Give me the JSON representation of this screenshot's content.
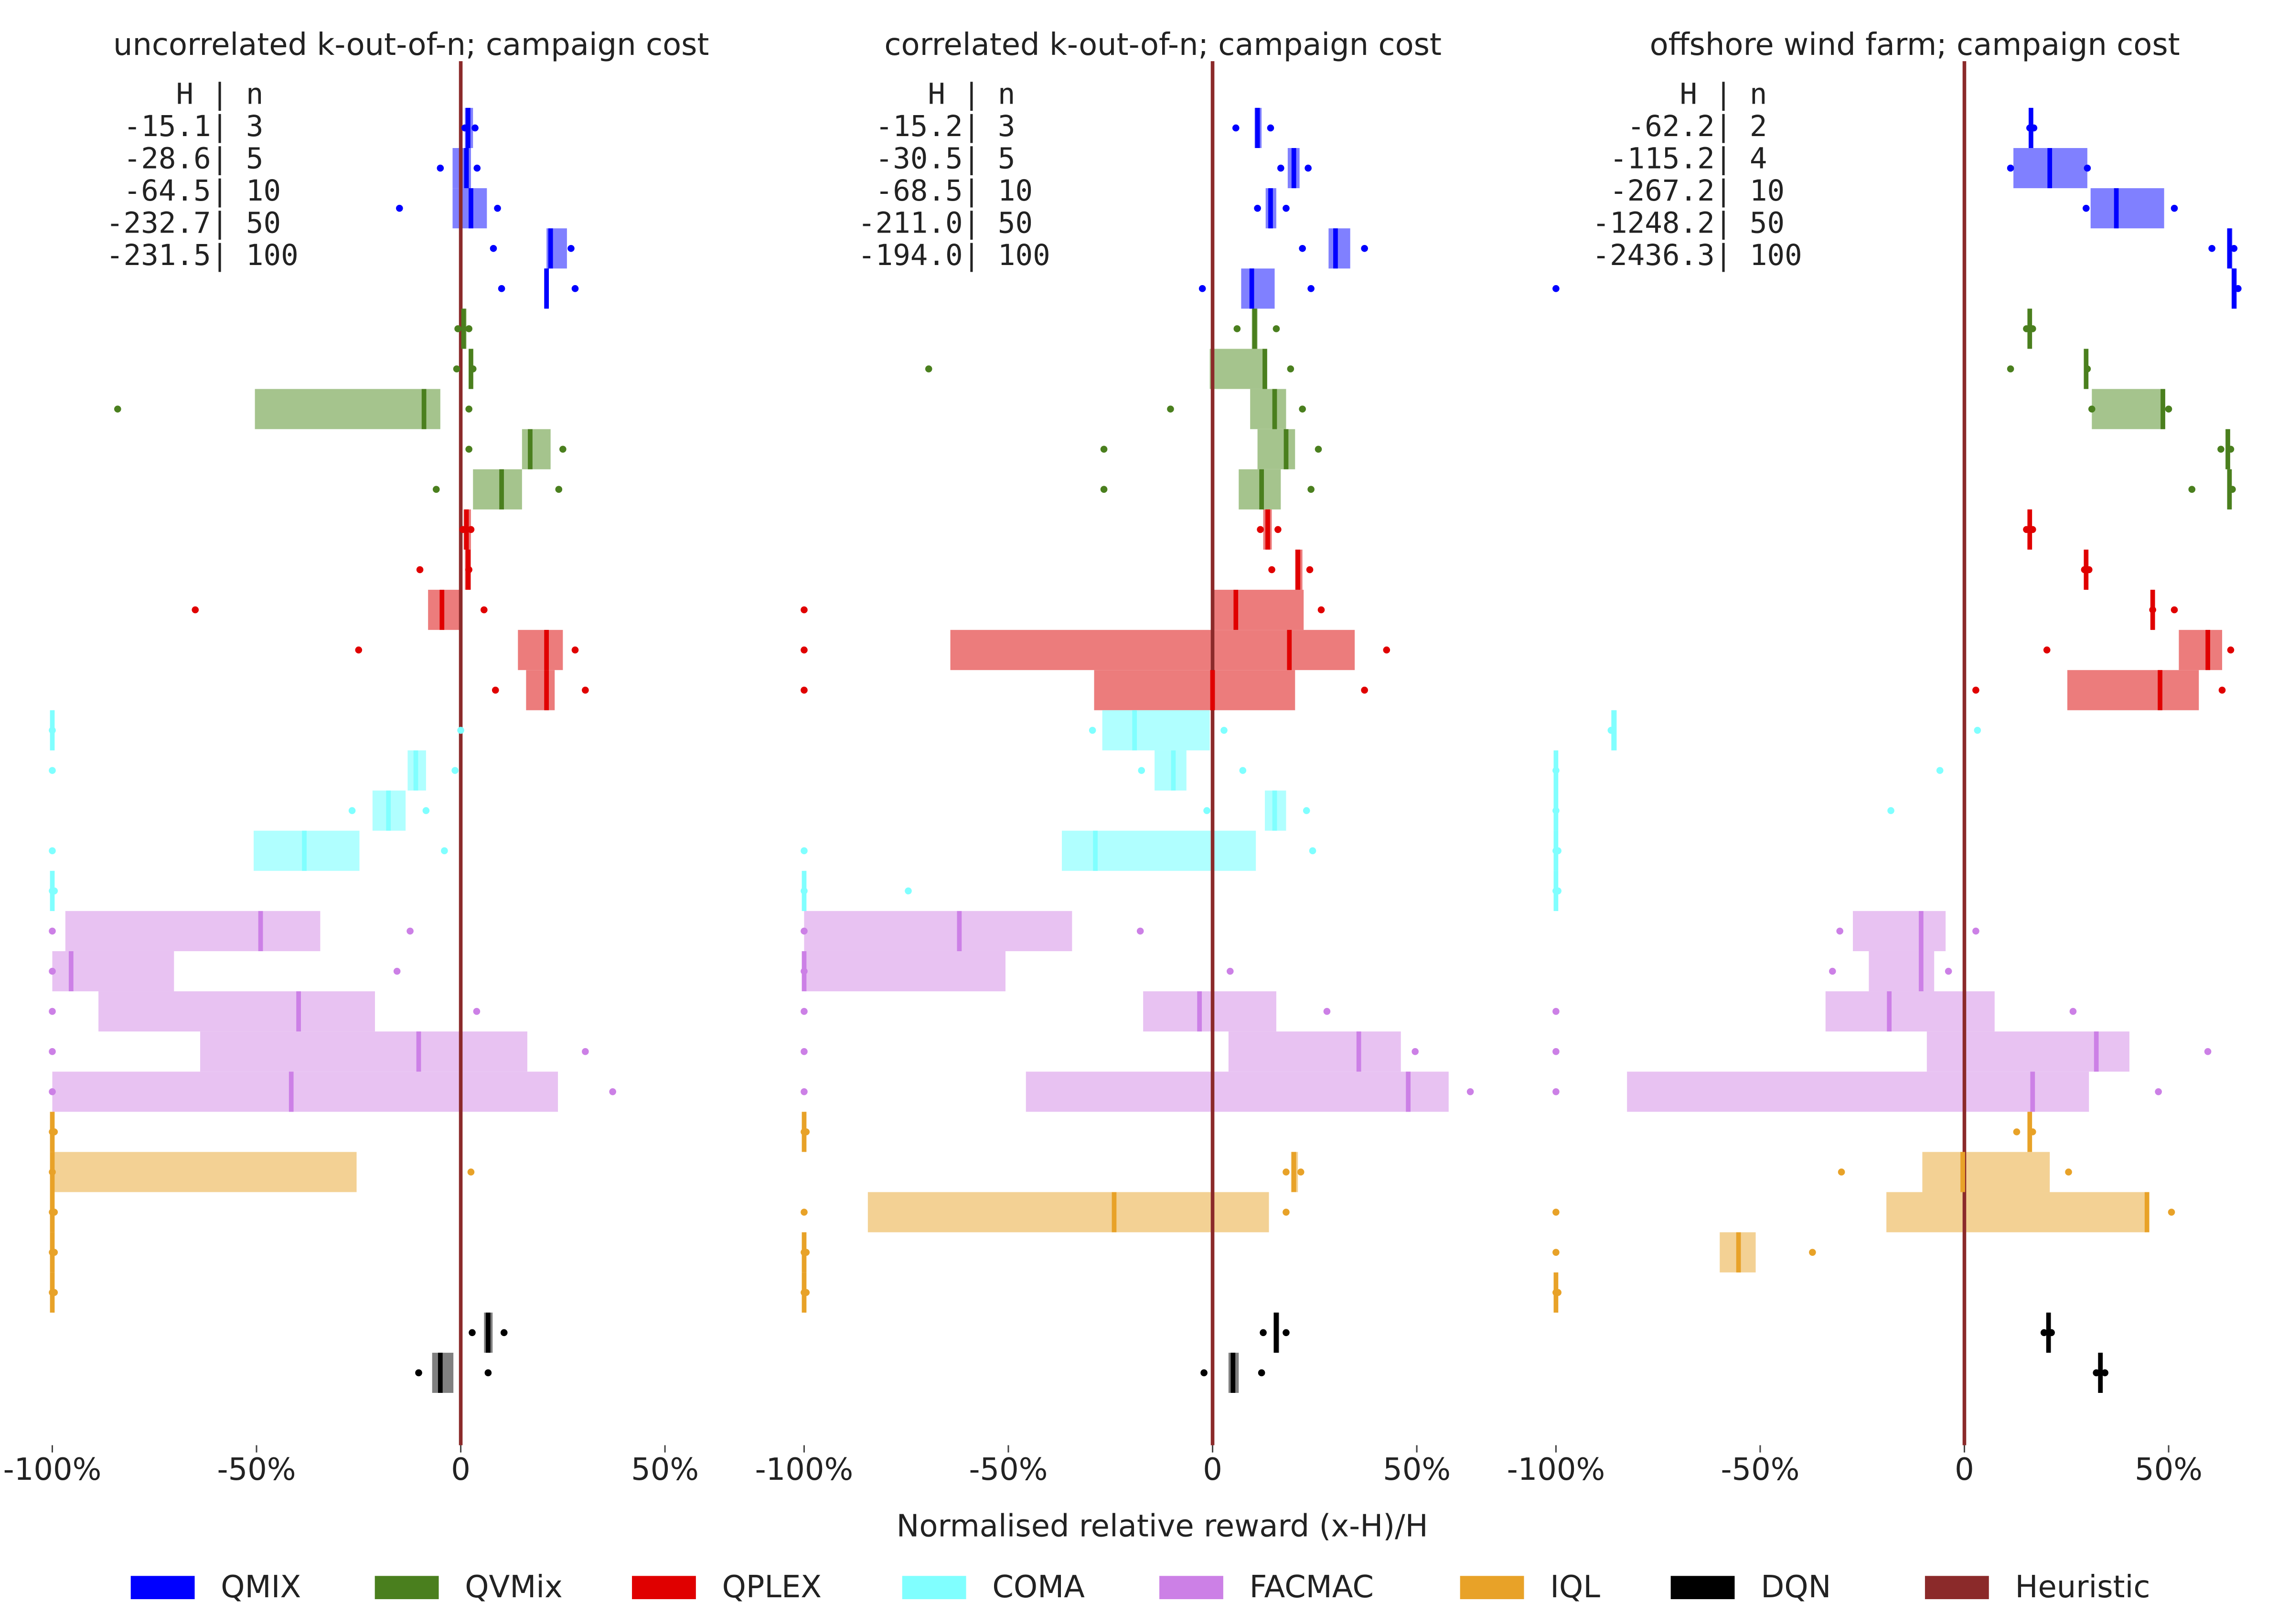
{
  "chart_data": {
    "type": "box",
    "xlabel": "Normalised relative reward (x-H)/H",
    "xlim": [
      -100,
      75
    ],
    "xticks": [
      {
        "value": -100,
        "label": "-100%"
      },
      {
        "value": -50,
        "label": "-50%"
      },
      0,
      {
        "value": 50,
        "label": "50%"
      }
    ],
    "panels": [
      {
        "title": "uncorrelated k-out-of-n; campaign cost",
        "table": [
          "    H | n",
          " -15.1| 3",
          " -28.6| 5",
          " -64.5| 10",
          "-232.7| 50",
          "-231.5| 100"
        ]
      },
      {
        "title": "correlated k-out-of-n; campaign cost",
        "table": [
          "    H | n",
          " -15.2| 3",
          " -30.5| 5",
          " -68.5| 10",
          "-211.0| 50",
          "-194.0| 100"
        ]
      },
      {
        "title": "offshore wind farm; campaign cost",
        "table": [
          "     H | n",
          "  -62.2| 2",
          " -115.2| 4",
          " -267.2| 10",
          "-1248.2| 50",
          "-2436.3| 100"
        ]
      }
    ],
    "series": [
      {
        "name": "QMIX",
        "color": "#0000ff",
        "box_color": "#8080ff",
        "panels": [
          {
            "median": [
              1.8,
              1.4,
              2.5,
              22,
              21
            ],
            "q1": [
              1,
              -2,
              -2,
              21,
              20.6
            ],
            "q3": [
              3,
              2.5,
              6.4,
              26,
              21.4
            ],
            "min": [
              1,
              -5,
              -15,
              8,
              10
            ],
            "max": [
              3.5,
              4,
              9,
              27,
              28
            ]
          },
          {
            "median": [
              11,
              19.9,
              14.2,
              30.1,
              9.6
            ],
            "q1": [
              10.3,
              18.4,
              13,
              28.4,
              7
            ],
            "q3": [
              12,
              21.3,
              15.6,
              33.7,
              15.2
            ],
            "min": [
              5.7,
              16.7,
              11,
              22,
              -2.5
            ],
            "max": [
              14.2,
              23.4,
              18,
              37.2,
              24.1
            ]
          },
          {
            "median": [
              16.3,
              20.9,
              37.2,
              64.9,
              66
            ],
            "q1": [
              15.9,
              12,
              30.9,
              64.5,
              65.6
            ],
            "q3": [
              16.7,
              30.1,
              48.9,
              65.6,
              66.7
            ],
            "min": [
              16,
              11.3,
              29.8,
              60.6,
              -100
            ],
            "max": [
              17,
              30.1,
              51.4,
              66,
              67
            ]
          }
        ]
      },
      {
        "name": "QVMix",
        "color": "#4a7f1e",
        "box_color": "#a5c48d",
        "panels": [
          {
            "median": [
              0.7,
              2.5,
              -9,
              17,
              10
            ],
            "q1": [
              0,
              2,
              -50.4,
              15,
              3
            ],
            "q3": [
              1.4,
              3,
              -5,
              22,
              15
            ],
            "min": [
              -0.7,
              -1,
              -84,
              2,
              -6
            ],
            "max": [
              2,
              3,
              2,
              25,
              24
            ]
          },
          {
            "median": [
              10.3,
              12.8,
              15.2,
              18,
              12
            ],
            "q1": [
              9.6,
              -0.7,
              9.2,
              11,
              6.4
            ],
            "q3": [
              11,
              13,
              18,
              20.2,
              16.7
            ],
            "min": [
              6,
              -69.5,
              -10.3,
              -26.6,
              -26.6
            ],
            "max": [
              15.6,
              19.1,
              22,
              25.9,
              24.1
            ]
          },
          {
            "median": [
              16,
              29.8,
              48.6,
              64.5,
              64.9
            ],
            "q1": [
              15.6,
              29.4,
              31.2,
              64.2,
              64.5
            ],
            "q3": [
              16.3,
              30.1,
              48.9,
              64.9,
              65.2
            ],
            "min": [
              15.2,
              11.3,
              31.2,
              62.8,
              55.7
            ],
            "max": [
              16.7,
              30.1,
              50,
              65.2,
              65.6
            ]
          }
        ]
      },
      {
        "name": "QPLEX",
        "color": "#e00000",
        "box_color": "#ec7c7c",
        "panels": [
          {
            "median": [
              1.4,
              1.8,
              -4.6,
              21,
              21
            ],
            "q1": [
              0.7,
              1,
              -8,
              14,
              16
            ],
            "q3": [
              2.5,
              2.5,
              0,
              25,
              23
            ],
            "min": [
              0.5,
              -10,
              -65,
              -25,
              8.5
            ],
            "max": [
              2.5,
              2,
              5.7,
              28,
              30.5
            ]
          },
          {
            "median": [
              13.5,
              20.9,
              5.7,
              18.8,
              0
            ],
            "q1": [
              12.4,
              20.2,
              0.4,
              -64.2,
              -29
            ],
            "q3": [
              14.5,
              22,
              22.3,
              34.8,
              20.2
            ],
            "min": [
              11.7,
              14.5,
              -100,
              -100,
              -100
            ],
            "max": [
              16,
              23.8,
              26.6,
              42.6,
              37.2
            ]
          },
          {
            "median": [
              16,
              29.8,
              46.1,
              59.6,
              47.9
            ],
            "q1": [
              15.6,
              29.4,
              45.7,
              52.5,
              25.2
            ],
            "q3": [
              16.3,
              30.1,
              46.5,
              63.1,
              57.4
            ],
            "min": [
              15.2,
              29.4,
              46.1,
              20.2,
              2.8
            ],
            "max": [
              16.7,
              30.5,
              51.4,
              65.2,
              63.1
            ]
          }
        ]
      },
      {
        "name": "COMA",
        "color": "#80ffff",
        "box_color": "#b0ffff",
        "panels": [
          {
            "median": [
              -100,
              -11,
              -17.7,
              -38.3,
              -100
            ],
            "q1": [
              -100,
              -13,
              -21.6,
              -50.7,
              -100
            ],
            "q3": [
              -99.5,
              -8.5,
              -13.5,
              -24.8,
              -99.5
            ],
            "min": [
              -100,
              -100,
              -26.6,
              -100,
              -100
            ],
            "max": [
              0,
              -1.4,
              -8.5,
              -4,
              -99.5
            ]
          },
          {
            "median": [
              -19.1,
              -9.6,
              15.2,
              -28.7,
              -100
            ],
            "q1": [
              -27,
              -14.2,
              12.8,
              -36.9,
              -100
            ],
            "q3": [
              -0.7,
              -6.4,
              18,
              10.6,
              -99.5
            ],
            "min": [
              -29.4,
              -17.4,
              -1.4,
              -100,
              -100
            ],
            "max": [
              2.8,
              7.4,
              23,
              24.5,
              -74.5
            ]
          },
          {
            "median": [
              -85.8,
              -100,
              -100,
              -100,
              -100
            ],
            "q1": [
              -86.5,
              -100,
              -100,
              -100,
              -100
            ],
            "q3": [
              -85.1,
              -99.5,
              -99.5,
              -99.5,
              -99.5
            ],
            "min": [
              -86.5,
              -100,
              -100,
              -100,
              -100
            ],
            "max": [
              3.2,
              -6,
              -18,
              -99.5,
              -99.5
            ]
          }
        ]
      },
      {
        "name": "FACMAC",
        "color": "#cc80e6",
        "box_color": "#e8c2f2",
        "panels": [
          {
            "median": [
              -49,
              -95.4,
              -39.7,
              -10.3,
              -41.5
            ],
            "q1": [
              -96.8,
              -100,
              -88.7,
              -63.8,
              -100
            ],
            "q3": [
              -34.4,
              -70.2,
              -21,
              16.3,
              23.8
            ],
            "min": [
              -100,
              -100,
              -100,
              -100,
              -100
            ],
            "max": [
              -12.4,
              -15.6,
              3.9,
              30.5,
              37.2
            ]
          },
          {
            "median": [
              -62,
              -100,
              -3.2,
              35.8,
              47.9
            ],
            "q1": [
              -100,
              -100,
              -17,
              3.9,
              -45.7
            ],
            "q3": [
              -34.4,
              -50.7,
              15.6,
              46.1,
              57.8
            ],
            "min": [
              -100,
              -100,
              -100,
              -100,
              -100
            ],
            "max": [
              -17.7,
              4.3,
              28,
              49.6,
              63.1
            ]
          },
          {
            "median": [
              -10.6,
              -10.6,
              -18.4,
              32.3,
              16.7
            ],
            "q1": [
              -27.3,
              -23.4,
              -34,
              -9.2,
              -82.6
            ],
            "q3": [
              -4.6,
              -7.4,
              7.4,
              40.4,
              30.5
            ],
            "min": [
              -30.5,
              -32.3,
              -100,
              -100,
              -100
            ],
            "max": [
              2.8,
              -3.9,
              26.6,
              59.6,
              47.5
            ]
          }
        ]
      },
      {
        "name": "IQL",
        "color": "#e8a228",
        "box_color": "#f3d194",
        "panels": [
          {
            "median": [
              -100,
              -100,
              -100,
              -100,
              -100
            ],
            "q1": [
              -100,
              -100,
              -100,
              -100,
              -100
            ],
            "q3": [
              -99.5,
              -25.5,
              -99.5,
              -99.5,
              -99.5
            ],
            "min": [
              -100,
              -100,
              -100,
              -100,
              -100
            ],
            "max": [
              -99.5,
              2.5,
              -99.5,
              -99.5,
              -99.5
            ]
          },
          {
            "median": [
              -100,
              19.9,
              -24.1,
              -100,
              -100
            ],
            "q1": [
              -100,
              19.2,
              -84.4,
              -100,
              -100
            ],
            "q3": [
              -99.5,
              20.9,
              13.8,
              -99.5,
              -99.5
            ],
            "min": [
              -100,
              18,
              -100,
              -100,
              -100
            ],
            "max": [
              -99.5,
              21.6,
              18,
              -99.5,
              -99.5
            ]
          },
          {
            "median": [
              16,
              -0.4,
              44.7,
              -55.3,
              -100
            ],
            "q1": [
              15.6,
              -10.3,
              -19.1,
              -59.9,
              -100
            ],
            "q3": [
              16.3,
              20.9,
              44.7,
              -51.1,
              -99.5
            ],
            "min": [
              12.8,
              -30.1,
              -100,
              -100,
              -100
            ],
            "max": [
              16.7,
              25.5,
              50.7,
              -37.2,
              -99.5
            ]
          }
        ]
      },
      {
        "name": "DQN",
        "color": "#000000",
        "box_color": "#808080",
        "panels": [
          {
            "median": [
              6.7,
              -5,
              null,
              null,
              null
            ],
            "q1": [
              5.7,
              -7,
              null,
              null,
              null
            ],
            "q3": [
              7.8,
              -1.8,
              null,
              null,
              null
            ],
            "min": [
              2.8,
              -10.3,
              null,
              null,
              null
            ],
            "max": [
              10.6,
              6.7,
              null,
              null,
              null
            ]
          },
          {
            "median": [
              15.6,
              5,
              null,
              null,
              null
            ],
            "q1": [
              14.9,
              3.9,
              null,
              null,
              null
            ],
            "q3": [
              16.3,
              6.4,
              null,
              null,
              null
            ],
            "min": [
              12.4,
              -2.1,
              null,
              null,
              null
            ],
            "max": [
              18,
              12,
              null,
              null,
              null
            ]
          },
          {
            "median": [
              20.6,
              33.3,
              null,
              null,
              null
            ],
            "q1": [
              20.2,
              32.9,
              null,
              null,
              null
            ],
            "q3": [
              21,
              33.7,
              null,
              null,
              null
            ],
            "min": [
              19.5,
              32.3,
              null,
              null,
              null
            ],
            "max": [
              21.3,
              34.4,
              null,
              null,
              null
            ]
          }
        ]
      }
    ],
    "heuristic": {
      "name": "Heuristic",
      "color": "#8b2a2a",
      "value": 0
    }
  }
}
